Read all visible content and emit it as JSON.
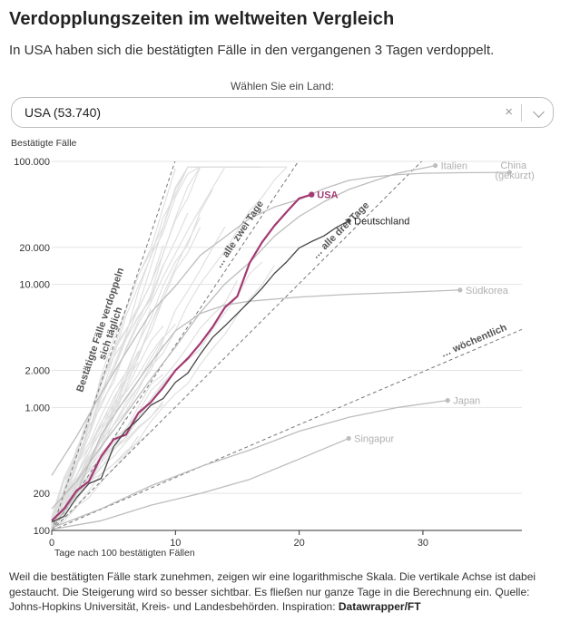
{
  "header": {
    "title": "Verdopplungszeiten im weltweiten Vergleich",
    "subtitle": "In USA haben sich die bestätigten Fälle in den vergangenen 3 Tagen verdoppelt."
  },
  "selector": {
    "label": "Wählen Sie ein Land:",
    "value": "USA (53.740)",
    "clear_icon": "×",
    "dropdown_icon": "chevron-down-icon"
  },
  "footer": {
    "text": "Weil die bestätigten Fälle stark zunehmen, zeigen wir eine logarithmische Skala. Die vertikale Achse ist dabei gestaucht. Die Steigerung wird so besser sichtbar. Es fließen nur ganze Tage in die Berechnung ein. Quelle: Johns-Hopkins Universität, Kreis- und Landesbehörden. Inspiration: ",
    "source_link": "Datawrapper/FT"
  },
  "chart_data": {
    "type": "line",
    "ylabel": "Bestätigte Fälle",
    "xlabel": "Tage nach 100 bestätigten Fällen",
    "y_scale": "log",
    "ylim": [
      100,
      100000
    ],
    "xlim": [
      0,
      38
    ],
    "y_ticks": [
      100,
      200,
      1000,
      2000,
      10000,
      20000,
      100000
    ],
    "y_tick_labels": [
      "100",
      "200",
      "1.000",
      "2.000",
      "10.000",
      "20.000",
      "100.000"
    ],
    "x_ticks": [
      0,
      10,
      20,
      30
    ],
    "x_tick_labels": [
      "0",
      "10",
      "20",
      "30"
    ],
    "grid": "horizontal",
    "colors": {
      "highlight": "#a33a72",
      "germany": "#444444",
      "labeled_gray": "#bdbdbd",
      "background_lines": "#dedede",
      "reference": "#777777"
    },
    "reference_lines": [
      {
        "label": "Bestätigte Fälle verdoppeln sich täglich",
        "doubling_days": 1
      },
      {
        "label": "… alle zwei Tage",
        "doubling_days": 2
      },
      {
        "label": "… alle drei Tage",
        "doubling_days": 3
      },
      {
        "label": "… wöchentlich",
        "doubling_days": 7
      }
    ],
    "series": [
      {
        "name": "USA",
        "role": "highlight",
        "x": [
          0,
          1,
          2,
          3,
          4,
          5,
          6,
          7,
          8,
          9,
          10,
          11,
          12,
          13,
          14,
          15,
          16,
          17,
          18,
          19,
          20,
          21
        ],
        "y": [
          120,
          150,
          210,
          250,
          400,
          550,
          600,
          900,
          1100,
          1450,
          2000,
          2500,
          3300,
          4500,
          6500,
          8000,
          15000,
          22000,
          30000,
          39000,
          50000,
          53740
        ]
      },
      {
        "name": "Deutschland",
        "role": "germany",
        "x": [
          0,
          1,
          2,
          3,
          4,
          5,
          6,
          7,
          8,
          9,
          10,
          11,
          12,
          13,
          14,
          15,
          16,
          17,
          18,
          19,
          20,
          21,
          22,
          23,
          24
        ],
        "y": [
          117,
          130,
          185,
          240,
          265,
          480,
          650,
          800,
          1040,
          1180,
          1600,
          1900,
          2700,
          3700,
          4600,
          5800,
          7300,
          9300,
          12300,
          15300,
          19800,
          22300,
          24800,
          29000,
          32900
        ]
      },
      {
        "name": "Italien",
        "role": "labeled",
        "x": [
          0,
          2,
          4,
          6,
          8,
          10,
          12,
          14,
          16,
          18,
          20,
          22,
          24,
          26,
          28,
          30,
          31
        ],
        "y": [
          150,
          250,
          480,
          890,
          1700,
          3100,
          5900,
          10100,
          15100,
          24700,
          35700,
          47000,
          59100,
          69200,
          80500,
          88000,
          92500
        ]
      },
      {
        "name": "China (gekürzt)",
        "role": "labeled",
        "x": [
          0,
          2,
          4,
          6,
          8,
          10,
          12,
          14,
          16,
          18,
          20,
          22,
          24,
          26,
          28,
          30,
          33,
          37
        ],
        "y": [
          280,
          580,
          1300,
          2800,
          5900,
          9700,
          17200,
          24300,
          34400,
          42600,
          49000,
          60000,
          70000,
          75000,
          78000,
          80000,
          80900,
          81500
        ]
      },
      {
        "name": "Südkorea",
        "role": "labeled",
        "x": [
          0,
          2,
          4,
          6,
          8,
          10,
          12,
          14,
          16,
          20,
          24,
          28,
          33
        ],
        "y": [
          104,
          200,
          600,
          1200,
          2300,
          4200,
          5800,
          6800,
          7300,
          7900,
          8300,
          8600,
          9000
        ]
      },
      {
        "name": "Japan",
        "role": "labeled",
        "x": [
          0,
          4,
          8,
          12,
          16,
          20,
          24,
          28,
          32
        ],
        "y": [
          105,
          150,
          230,
          330,
          450,
          640,
          830,
          1000,
          1140
        ]
      },
      {
        "name": "Singapur",
        "role": "labeled",
        "x": [
          0,
          4,
          8,
          12,
          16,
          20,
          24
        ],
        "y": [
          102,
          120,
          160,
          200,
          260,
          380,
          560
        ]
      }
    ]
  }
}
